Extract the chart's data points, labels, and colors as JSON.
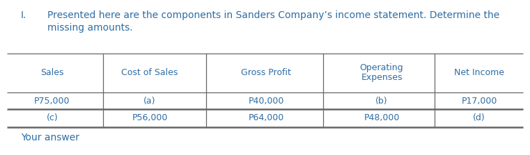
{
  "title_number": "I.",
  "title_line1": "Presented here are the components in Sanders Company’s income statement. Determine the",
  "title_line2": "missing amounts.",
  "bg_color": "#ffffff",
  "text_color": "#2E6DA4",
  "line_color": "#666666",
  "header_row": [
    "Sales",
    "Cost of Sales",
    "Gross Profit",
    "Operating\nExpenses",
    "Net Income"
  ],
  "row1": [
    "P75,000",
    "(a)",
    "P40,000",
    "(b)",
    "P17,000"
  ],
  "row2": [
    "(c)",
    "P56,000",
    "P64,000",
    "P48,000",
    "(d)"
  ],
  "footer_text": "Your answer",
  "font_size": 9.0,
  "title_font_size": 10.0,
  "fig_width": 7.61,
  "fig_height": 2.23,
  "dpi": 100
}
